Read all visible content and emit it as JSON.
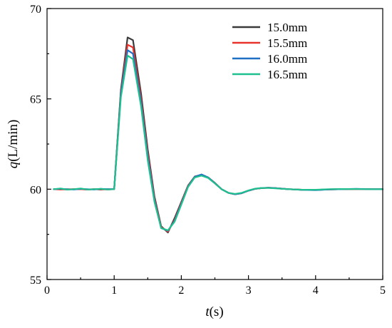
{
  "chart_data": {
    "type": "line",
    "xlabel": {
      "italic": "t",
      "rest": "(s)"
    },
    "ylabel": {
      "italic": "q",
      "rest": "(L/min)"
    },
    "xlim": [
      0,
      5
    ],
    "ylim": [
      55,
      70
    ],
    "xticks": [
      0,
      1,
      2,
      3,
      4,
      5
    ],
    "yticks": [
      55,
      60,
      65,
      70
    ],
    "grid": false,
    "legend_position": "top-right",
    "series": [
      {
        "name": "15.0mm",
        "color": "#3a3a3a",
        "points": [
          [
            0.1,
            60.0
          ],
          [
            0.2,
            60.0
          ],
          [
            0.3,
            59.98
          ],
          [
            0.4,
            60.0
          ],
          [
            0.5,
            60.0
          ],
          [
            0.6,
            59.98
          ],
          [
            0.7,
            60.0
          ],
          [
            0.8,
            59.98
          ],
          [
            0.9,
            60.0
          ],
          [
            1.0,
            60.0
          ],
          [
            1.1,
            65.5
          ],
          [
            1.2,
            68.4
          ],
          [
            1.28,
            68.25
          ],
          [
            1.4,
            65.3
          ],
          [
            1.5,
            62.2
          ],
          [
            1.6,
            59.6
          ],
          [
            1.7,
            57.95
          ],
          [
            1.8,
            57.6
          ],
          [
            1.9,
            58.4
          ],
          [
            2.0,
            59.3
          ],
          [
            2.1,
            60.2
          ],
          [
            2.2,
            60.7
          ],
          [
            2.3,
            60.8
          ],
          [
            2.4,
            60.65
          ],
          [
            2.5,
            60.35
          ],
          [
            2.6,
            60.0
          ],
          [
            2.7,
            59.8
          ],
          [
            2.8,
            59.72
          ],
          [
            2.9,
            59.78
          ],
          [
            3.0,
            59.92
          ],
          [
            3.1,
            60.02
          ],
          [
            3.2,
            60.06
          ],
          [
            3.3,
            60.08
          ],
          [
            3.4,
            60.06
          ],
          [
            3.5,
            60.03
          ],
          [
            3.6,
            60.0
          ],
          [
            3.8,
            59.97
          ],
          [
            4.0,
            59.96
          ],
          [
            4.2,
            59.99
          ],
          [
            4.4,
            60.0
          ],
          [
            4.6,
            60.01
          ],
          [
            4.8,
            60.0
          ],
          [
            5.0,
            60.0
          ]
        ]
      },
      {
        "name": "15.5mm",
        "color": "#e8332c",
        "points": [
          [
            0.1,
            60.0
          ],
          [
            0.2,
            59.98
          ],
          [
            0.3,
            60.0
          ],
          [
            0.4,
            60.0
          ],
          [
            0.5,
            60.0
          ],
          [
            0.6,
            59.98
          ],
          [
            0.7,
            60.0
          ],
          [
            0.8,
            60.0
          ],
          [
            0.9,
            59.98
          ],
          [
            1.0,
            60.0
          ],
          [
            1.1,
            65.4
          ],
          [
            1.2,
            68.0
          ],
          [
            1.28,
            67.85
          ],
          [
            1.4,
            65.0
          ],
          [
            1.5,
            62.0
          ],
          [
            1.6,
            59.5
          ],
          [
            1.7,
            57.9
          ],
          [
            1.8,
            57.65
          ],
          [
            1.9,
            58.3
          ],
          [
            2.0,
            59.25
          ],
          [
            2.1,
            60.18
          ],
          [
            2.2,
            60.68
          ],
          [
            2.3,
            60.8
          ],
          [
            2.4,
            60.63
          ],
          [
            2.5,
            60.33
          ],
          [
            2.6,
            60.0
          ],
          [
            2.7,
            59.8
          ],
          [
            2.8,
            59.72
          ],
          [
            2.9,
            59.78
          ],
          [
            3.0,
            59.92
          ],
          [
            3.1,
            60.02
          ],
          [
            3.2,
            60.06
          ],
          [
            3.3,
            60.08
          ],
          [
            3.4,
            60.06
          ],
          [
            3.5,
            60.03
          ],
          [
            3.6,
            60.0
          ],
          [
            3.8,
            59.97
          ],
          [
            4.0,
            59.96
          ],
          [
            4.2,
            59.99
          ],
          [
            4.4,
            60.0
          ],
          [
            4.6,
            60.01
          ],
          [
            4.8,
            60.0
          ],
          [
            5.0,
            60.0
          ]
        ]
      },
      {
        "name": "16.0mm",
        "color": "#1f6fc5",
        "points": [
          [
            0.1,
            60.0
          ],
          [
            0.2,
            60.02
          ],
          [
            0.3,
            60.0
          ],
          [
            0.4,
            59.98
          ],
          [
            0.5,
            60.02
          ],
          [
            0.6,
            60.0
          ],
          [
            0.7,
            59.98
          ],
          [
            0.8,
            60.02
          ],
          [
            0.9,
            60.0
          ],
          [
            1.0,
            60.0
          ],
          [
            1.1,
            65.3
          ],
          [
            1.2,
            67.7
          ],
          [
            1.28,
            67.5
          ],
          [
            1.4,
            64.8
          ],
          [
            1.5,
            61.8
          ],
          [
            1.6,
            59.4
          ],
          [
            1.7,
            57.85
          ],
          [
            1.8,
            57.7
          ],
          [
            1.9,
            58.25
          ],
          [
            2.0,
            59.2
          ],
          [
            2.1,
            60.15
          ],
          [
            2.2,
            60.68
          ],
          [
            2.3,
            60.82
          ],
          [
            2.4,
            60.65
          ],
          [
            2.5,
            60.33
          ],
          [
            2.6,
            60.0
          ],
          [
            2.7,
            59.8
          ],
          [
            2.8,
            59.72
          ],
          [
            2.9,
            59.78
          ],
          [
            3.0,
            59.92
          ],
          [
            3.1,
            60.02
          ],
          [
            3.2,
            60.07
          ],
          [
            3.3,
            60.08
          ],
          [
            3.4,
            60.06
          ],
          [
            3.5,
            60.03
          ],
          [
            3.6,
            60.0
          ],
          [
            3.8,
            59.96
          ],
          [
            4.0,
            59.95
          ],
          [
            4.2,
            59.99
          ],
          [
            4.4,
            60.0
          ],
          [
            4.6,
            60.02
          ],
          [
            4.8,
            60.0
          ],
          [
            5.0,
            60.0
          ]
        ]
      },
      {
        "name": "16.5mm",
        "color": "#1fbf8f",
        "points": [
          [
            0.1,
            60.0
          ],
          [
            0.2,
            60.04
          ],
          [
            0.3,
            59.98
          ],
          [
            0.4,
            60.0
          ],
          [
            0.5,
            60.04
          ],
          [
            0.6,
            59.98
          ],
          [
            0.7,
            60.0
          ],
          [
            0.8,
            60.02
          ],
          [
            0.9,
            59.98
          ],
          [
            1.0,
            60.0
          ],
          [
            1.1,
            65.1
          ],
          [
            1.2,
            67.4
          ],
          [
            1.28,
            67.2
          ],
          [
            1.4,
            64.6
          ],
          [
            1.5,
            61.6
          ],
          [
            1.6,
            59.3
          ],
          [
            1.7,
            57.85
          ],
          [
            1.8,
            57.72
          ],
          [
            1.9,
            58.2
          ],
          [
            2.0,
            59.15
          ],
          [
            2.1,
            60.12
          ],
          [
            2.2,
            60.65
          ],
          [
            2.3,
            60.75
          ],
          [
            2.4,
            60.62
          ],
          [
            2.5,
            60.32
          ],
          [
            2.6,
            60.0
          ],
          [
            2.7,
            59.8
          ],
          [
            2.8,
            59.74
          ],
          [
            2.9,
            59.8
          ],
          [
            3.0,
            59.93
          ],
          [
            3.1,
            60.03
          ],
          [
            3.2,
            60.07
          ],
          [
            3.3,
            60.07
          ],
          [
            3.4,
            60.05
          ],
          [
            3.5,
            60.02
          ],
          [
            3.6,
            60.0
          ],
          [
            3.8,
            59.97
          ],
          [
            4.0,
            59.97
          ],
          [
            4.2,
            60.0
          ],
          [
            4.4,
            60.01
          ],
          [
            4.6,
            60.01
          ],
          [
            4.8,
            60.0
          ],
          [
            5.0,
            60.0
          ]
        ]
      }
    ]
  }
}
